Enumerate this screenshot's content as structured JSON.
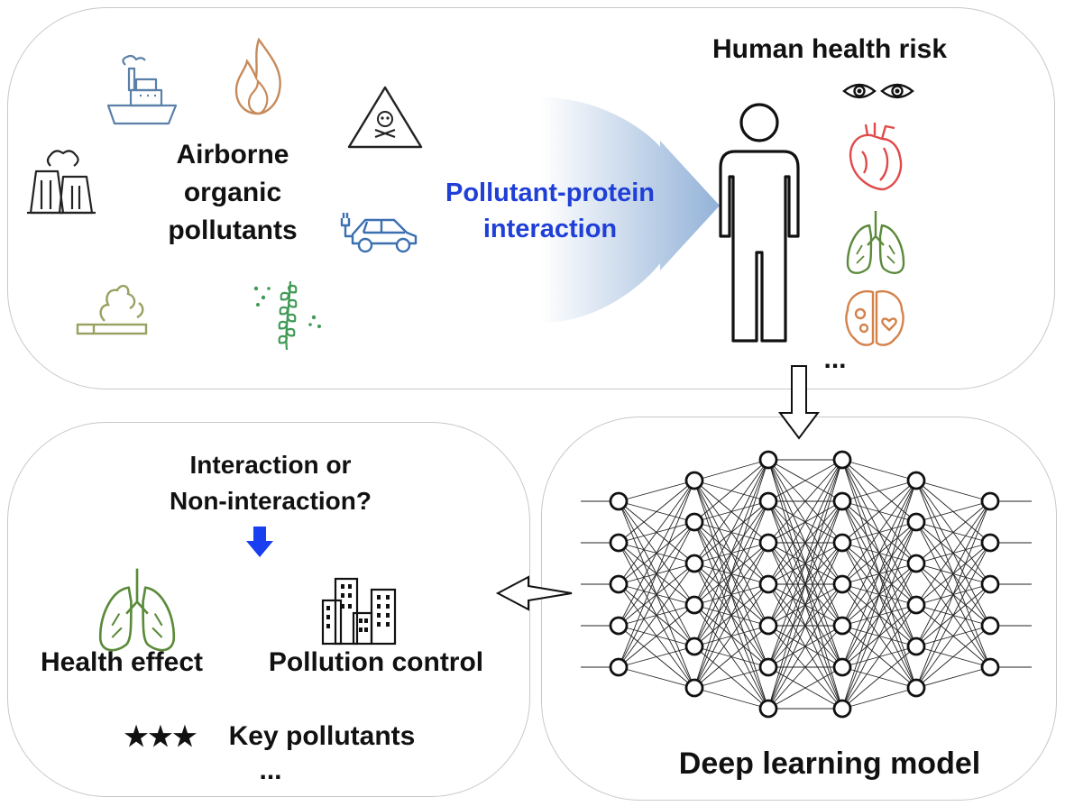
{
  "top_panel": {
    "sources_label": [
      "Airborne",
      "organic",
      "pollutants"
    ],
    "interaction_label": [
      "Pollutant-protein",
      "interaction"
    ],
    "risk_title": "Human health risk",
    "risk_ellipsis": "..."
  },
  "bottom_left_panel": {
    "question": [
      "Interaction or",
      "Non-interaction?"
    ],
    "health_effect": "Health effect",
    "pollution_control": "Pollution control",
    "stars": "★★★",
    "key_pollutants": "Key pollutants",
    "ellipsis": "..."
  },
  "bottom_right_panel": {
    "title": "Deep learning model"
  },
  "colors": {
    "interaction_text": "#1f3fd6",
    "down_arrow": "#1a3ff0",
    "heart": "#e04a4a",
    "lungs": "#5b8a3a",
    "brain": "#d4824a",
    "fire": "#c78a5a",
    "ship": "#5a7fa8",
    "car": "#3a6fb0",
    "cigarette": "#9aa060",
    "plant": "#3f9a55"
  },
  "icons": [
    "ship-icon",
    "fire-icon",
    "toxic-warning-icon",
    "factory-icon",
    "electric-car-icon",
    "cigarette-icon",
    "pollen-plant-icon",
    "human-icon",
    "eyes-icon",
    "heart-icon",
    "lungs-icon",
    "brain-icon",
    "building-icon",
    "neural-network-icon"
  ],
  "network_layers": [
    5,
    6,
    7,
    7,
    6,
    5
  ]
}
